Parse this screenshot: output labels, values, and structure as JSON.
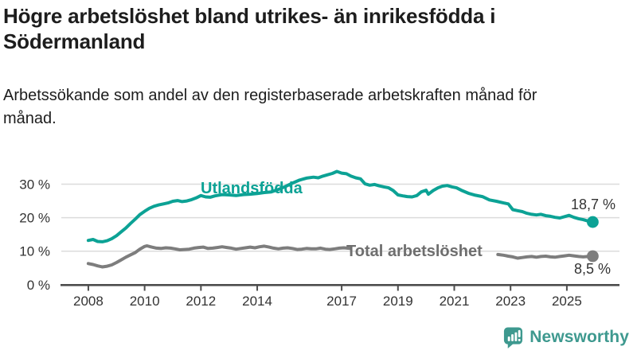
{
  "header": {
    "title": "Högre arbetslöshet bland utrikes- än inrikesfödda i Södermanland",
    "subtitle": "Arbetssökande som andel av den registerbaserade arbetskraften månad för månad."
  },
  "footer": {
    "brand": "Newsworthy",
    "logo_icon": "bar-chart-speech-bubble-icon"
  },
  "colors": {
    "accent_teal": "#0ca295",
    "series_gray": "#7d7d7d",
    "gray_label": "#6e6e6e",
    "grid": "#dcdcdc",
    "axis": "#4d4d4d",
    "tick_text": "#333333",
    "annotation_text": "#333333",
    "title_text": "#1d1d1d",
    "brand_teal": "#3e998f"
  },
  "chart_data": {
    "type": "line",
    "title": "",
    "xlabel": "",
    "ylabel": "",
    "x_unit": "year, monthly data",
    "y_unit": "percent of labour force",
    "xlim": [
      2007.04,
      2026.87
    ],
    "ylim": [
      0,
      36.3
    ],
    "grid": "horizontal",
    "legend_position": "inline-labels",
    "x_ticks": [
      {
        "label": "2008",
        "year": 2008
      },
      {
        "label": "2010",
        "year": 2010
      },
      {
        "label": "2012",
        "year": 2012
      },
      {
        "label": "2014",
        "year": 2014
      },
      {
        "label": "2017",
        "year": 2017
      },
      {
        "label": "2019",
        "year": 2019
      },
      {
        "label": "2021",
        "year": 2021
      },
      {
        "label": "2023",
        "year": 2023
      },
      {
        "label": "2025",
        "year": 2025
      }
    ],
    "y_ticks": [
      {
        "label": "0 %",
        "value": 0
      },
      {
        "label": "10 %",
        "value": 10
      },
      {
        "label": "20 %",
        "value": 20
      },
      {
        "label": "30 %",
        "value": 30
      }
    ],
    "series": [
      {
        "name": "Utlandsfödda",
        "label": "Utlandsfödda",
        "end_label": "18,7 %",
        "end_value": 18.7,
        "color": "#0ca295",
        "segments": [
          [
            [
              2008.0,
              13.2
            ],
            [
              2008.17,
              13.5
            ],
            [
              2008.33,
              12.9
            ],
            [
              2008.5,
              12.8
            ],
            [
              2008.67,
              13.1
            ],
            [
              2008.83,
              13.7
            ],
            [
              2009.0,
              14.6
            ],
            [
              2009.17,
              15.8
            ],
            [
              2009.33,
              16.9
            ],
            [
              2009.5,
              18.3
            ],
            [
              2009.67,
              19.6
            ],
            [
              2009.83,
              20.9
            ],
            [
              2010.0,
              21.9
            ],
            [
              2010.17,
              22.8
            ],
            [
              2010.33,
              23.4
            ],
            [
              2010.5,
              23.8
            ],
            [
              2010.67,
              24.1
            ],
            [
              2010.83,
              24.4
            ],
            [
              2011.0,
              24.9
            ],
            [
              2011.17,
              25.1
            ],
            [
              2011.33,
              24.8
            ],
            [
              2011.5,
              25.0
            ],
            [
              2011.67,
              25.4
            ],
            [
              2011.83,
              25.9
            ],
            [
              2012.0,
              26.6
            ],
            [
              2012.17,
              26.2
            ],
            [
              2012.33,
              26.1
            ],
            [
              2012.5,
              26.5
            ],
            [
              2012.75,
              26.9
            ],
            [
              2013.0,
              26.8
            ],
            [
              2013.25,
              26.6
            ],
            [
              2013.5,
              26.9
            ],
            [
              2013.75,
              27.0
            ],
            [
              2014.0,
              27.2
            ],
            [
              2014.25,
              27.5
            ],
            [
              2014.5,
              27.7
            ],
            [
              2014.75,
              28.4
            ],
            [
              2015.0,
              29.3
            ],
            [
              2015.25,
              30.3
            ],
            [
              2015.5,
              31.2
            ],
            [
              2015.75,
              31.8
            ],
            [
              2016.0,
              32.1
            ],
            [
              2016.17,
              31.9
            ],
            [
              2016.33,
              32.4
            ],
            [
              2016.5,
              32.8
            ],
            [
              2016.67,
              33.2
            ],
            [
              2016.83,
              33.8
            ],
            [
              2017.0,
              33.3
            ],
            [
              2017.17,
              33.1
            ],
            [
              2017.33,
              32.4
            ],
            [
              2017.5,
              31.9
            ],
            [
              2017.67,
              31.6
            ],
            [
              2017.83,
              30.1
            ],
            [
              2018.0,
              29.7
            ],
            [
              2018.17,
              29.9
            ],
            [
              2018.33,
              29.5
            ],
            [
              2018.5,
              29.2
            ],
            [
              2018.67,
              28.9
            ],
            [
              2018.83,
              28.1
            ],
            [
              2019.0,
              26.8
            ],
            [
              2019.17,
              26.5
            ],
            [
              2019.33,
              26.3
            ],
            [
              2019.5,
              26.2
            ],
            [
              2019.67,
              26.6
            ],
            [
              2019.83,
              27.7
            ],
            [
              2020.0,
              28.2
            ],
            [
              2020.08,
              27.0
            ],
            [
              2020.25,
              28.1
            ],
            [
              2020.42,
              28.9
            ],
            [
              2020.58,
              29.4
            ],
            [
              2020.75,
              29.6
            ],
            [
              2020.92,
              29.2
            ],
            [
              2021.08,
              28.9
            ],
            [
              2021.25,
              28.2
            ],
            [
              2021.5,
              27.3
            ],
            [
              2021.75,
              26.7
            ],
            [
              2022.0,
              26.3
            ],
            [
              2022.25,
              25.3
            ],
            [
              2022.5,
              24.9
            ],
            [
              2022.75,
              24.4
            ],
            [
              2022.92,
              24.1
            ],
            [
              2023.08,
              22.4
            ],
            [
              2023.25,
              22.1
            ],
            [
              2023.42,
              21.8
            ],
            [
              2023.58,
              21.3
            ],
            [
              2023.75,
              21.0
            ],
            [
              2023.92,
              20.8
            ],
            [
              2024.08,
              21.0
            ],
            [
              2024.25,
              20.6
            ],
            [
              2024.42,
              20.4
            ],
            [
              2024.58,
              20.1
            ],
            [
              2024.75,
              19.9
            ],
            [
              2024.92,
              20.3
            ],
            [
              2025.08,
              20.7
            ],
            [
              2025.25,
              20.1
            ],
            [
              2025.42,
              19.7
            ],
            [
              2025.58,
              19.4
            ],
            [
              2025.75,
              19.0
            ],
            [
              2025.92,
              18.7
            ]
          ]
        ]
      },
      {
        "name": "Total arbetslöshet",
        "label": "Total arbetslöshet",
        "end_label": "8,5 %",
        "end_value": 8.5,
        "color": "#7d7d7d",
        "segments": [
          [
            [
              2008.0,
              6.3
            ],
            [
              2008.17,
              6.0
            ],
            [
              2008.33,
              5.6
            ],
            [
              2008.5,
              5.3
            ],
            [
              2008.67,
              5.5
            ],
            [
              2008.83,
              5.9
            ],
            [
              2009.0,
              6.6
            ],
            [
              2009.17,
              7.4
            ],
            [
              2009.33,
              8.2
            ],
            [
              2009.5,
              8.9
            ],
            [
              2009.67,
              9.6
            ],
            [
              2009.83,
              10.6
            ],
            [
              2010.0,
              11.4
            ],
            [
              2010.08,
              11.6
            ],
            [
              2010.25,
              11.2
            ],
            [
              2010.42,
              10.9
            ],
            [
              2010.58,
              10.8
            ],
            [
              2010.75,
              11.0
            ],
            [
              2010.92,
              10.9
            ],
            [
              2011.08,
              10.7
            ],
            [
              2011.25,
              10.4
            ],
            [
              2011.42,
              10.5
            ],
            [
              2011.58,
              10.6
            ],
            [
              2011.75,
              10.9
            ],
            [
              2011.92,
              11.1
            ],
            [
              2012.08,
              11.2
            ],
            [
              2012.25,
              10.8
            ],
            [
              2012.42,
              10.9
            ],
            [
              2012.58,
              11.1
            ],
            [
              2012.75,
              11.3
            ],
            [
              2012.92,
              11.1
            ],
            [
              2013.08,
              10.9
            ],
            [
              2013.25,
              10.6
            ],
            [
              2013.42,
              10.8
            ],
            [
              2013.58,
              11.0
            ],
            [
              2013.75,
              11.2
            ],
            [
              2013.92,
              11.0
            ],
            [
              2014.08,
              11.3
            ],
            [
              2014.25,
              11.5
            ],
            [
              2014.42,
              11.2
            ],
            [
              2014.58,
              10.9
            ],
            [
              2014.75,
              10.7
            ],
            [
              2014.92,
              10.9
            ],
            [
              2015.08,
              11.0
            ],
            [
              2015.25,
              10.8
            ],
            [
              2015.42,
              10.5
            ],
            [
              2015.58,
              10.6
            ],
            [
              2015.75,
              10.8
            ],
            [
              2015.92,
              10.7
            ],
            [
              2016.08,
              10.7
            ],
            [
              2016.25,
              10.9
            ],
            [
              2016.42,
              10.6
            ],
            [
              2016.58,
              10.5
            ],
            [
              2016.75,
              10.7
            ],
            [
              2016.92,
              10.9
            ],
            [
              2017.08,
              11.0
            ],
            [
              2017.3,
              10.8
            ]
          ],
          [
            [
              2022.55,
              9.0
            ],
            [
              2022.75,
              8.8
            ],
            [
              2022.92,
              8.5
            ],
            [
              2023.08,
              8.3
            ],
            [
              2023.25,
              7.9
            ],
            [
              2023.42,
              8.1
            ],
            [
              2023.58,
              8.3
            ],
            [
              2023.75,
              8.4
            ],
            [
              2023.92,
              8.2
            ],
            [
              2024.08,
              8.4
            ],
            [
              2024.25,
              8.5
            ],
            [
              2024.42,
              8.3
            ],
            [
              2024.58,
              8.2
            ],
            [
              2024.75,
              8.4
            ],
            [
              2024.92,
              8.6
            ],
            [
              2025.08,
              8.8
            ],
            [
              2025.25,
              8.6
            ],
            [
              2025.42,
              8.4
            ],
            [
              2025.58,
              8.3
            ],
            [
              2025.75,
              8.4
            ],
            [
              2025.92,
              8.5
            ]
          ]
        ]
      }
    ]
  }
}
